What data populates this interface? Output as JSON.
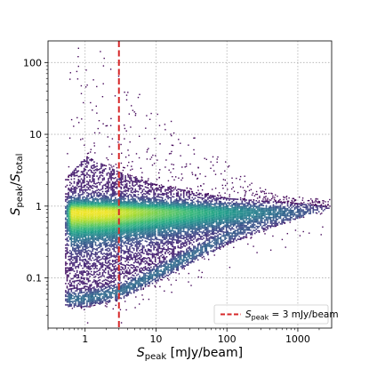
{
  "chart_data": {
    "type": "heatmap",
    "subtype": "2d-histogram-log-density",
    "colormap": "viridis",
    "xscale": "log",
    "yscale": "log",
    "xlim": [
      0.3,
      3000
    ],
    "ylim": [
      0.02,
      200
    ],
    "grid": true,
    "xlabel": {
      "main": "S",
      "sub": "peak",
      "unit": " [mJy/beam]"
    },
    "ylabel": {
      "s1": "S",
      "sub1": "peak",
      "slash": "/",
      "s2": "S",
      "sub2": "total"
    },
    "xticks": [
      1,
      10,
      100,
      1000
    ],
    "xtick_labels": [
      "1",
      "10",
      "100",
      "1000"
    ],
    "yticks": [
      0.1,
      1,
      10,
      100
    ],
    "ytick_labels": [
      "0.1",
      "1",
      "10",
      "100"
    ],
    "threshold_line": {
      "x": 3,
      "color": "#d62728",
      "style": "dashed"
    },
    "legend": {
      "position": "lower right",
      "entry": {
        "s": "S",
        "sub": "peak",
        "rest": " = 3 mJy/beam",
        "color": "#d62728"
      }
    },
    "density_description": {
      "ridge_y": 0.85,
      "peak_density_x_range": [
        0.7,
        2.0
      ],
      "upper_envelope": [
        [
          0.55,
          2.5
        ],
        [
          1,
          5
        ],
        [
          3,
          3
        ],
        [
          10,
          2
        ],
        [
          100,
          1.3
        ],
        [
          1000,
          1.1
        ],
        [
          2500,
          1.0
        ]
      ],
      "lower_envelope": [
        [
          0.55,
          0.04
        ],
        [
          1,
          0.04
        ],
        [
          3,
          0.05
        ],
        [
          10,
          0.09
        ],
        [
          100,
          0.3
        ],
        [
          1000,
          0.7
        ],
        [
          2500,
          0.9
        ]
      ]
    }
  }
}
